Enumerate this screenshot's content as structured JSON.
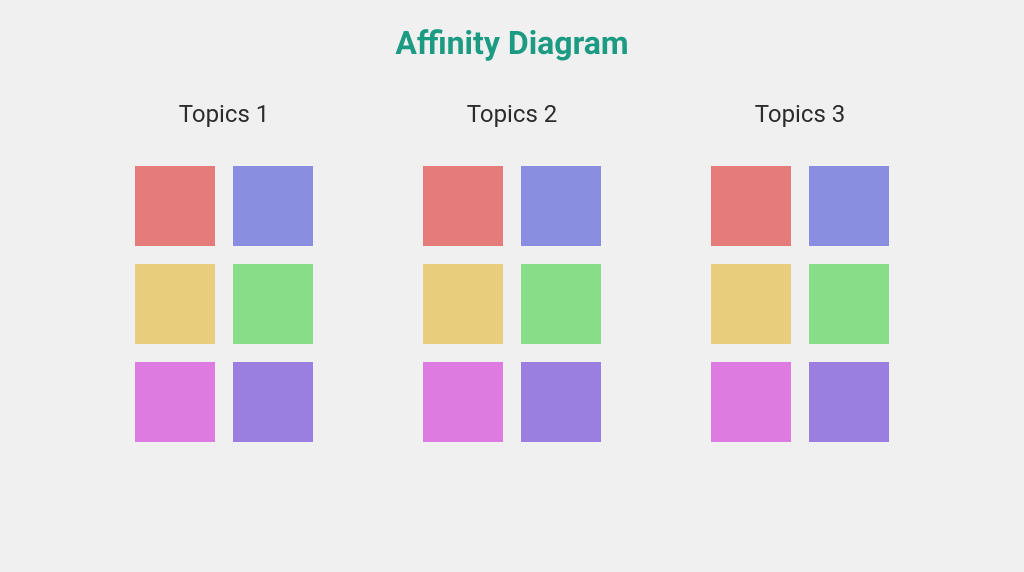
{
  "title": "Affinity Diagram",
  "title_color": "#1c9b82",
  "title_fontsize": 32,
  "title_fontweight": 700,
  "background_color": "#f0f0f0",
  "column_title_fontsize": 24,
  "column_title_color": "#2b2b2b",
  "card_size": 80,
  "card_gap": 18,
  "column_gap": 110,
  "grid_cols": 2,
  "grid_rows": 3,
  "columns": [
    {
      "title": "Topics 1",
      "cards": [
        {
          "color": "#e57b7b"
        },
        {
          "color": "#8a8ee0"
        },
        {
          "color": "#e7cd7c"
        },
        {
          "color": "#88dd88"
        },
        {
          "color": "#dd7be0"
        },
        {
          "color": "#9a7fe0"
        }
      ]
    },
    {
      "title": "Topics 2",
      "cards": [
        {
          "color": "#e57b7b"
        },
        {
          "color": "#8a8ee0"
        },
        {
          "color": "#e7cd7c"
        },
        {
          "color": "#88dd88"
        },
        {
          "color": "#dd7be0"
        },
        {
          "color": "#9a7fe0"
        }
      ]
    },
    {
      "title": "Topics 3",
      "cards": [
        {
          "color": "#e57b7b"
        },
        {
          "color": "#8a8ee0"
        },
        {
          "color": "#e7cd7c"
        },
        {
          "color": "#88dd88"
        },
        {
          "color": "#dd7be0"
        },
        {
          "color": "#9a7fe0"
        }
      ]
    }
  ]
}
